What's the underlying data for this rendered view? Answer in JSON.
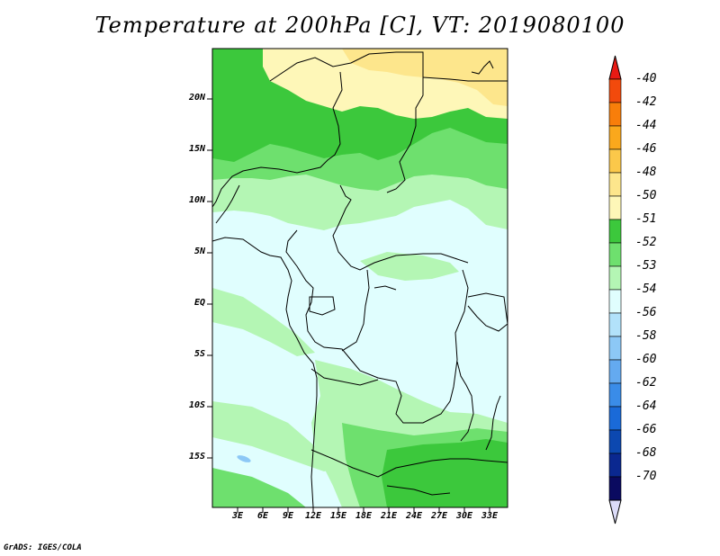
{
  "title": "Temperature at 200hPa [C], VT: 2019080100",
  "credit": "GrADS: IGES/COLA",
  "map": {
    "lat_labels": [
      "20N",
      "15N",
      "10N",
      "5N",
      "EQ",
      "5S",
      "10S",
      "15S"
    ],
    "lon_labels": [
      "3E",
      "6E",
      "9E",
      "12E",
      "15E",
      "18E",
      "21E",
      "24E",
      "27E",
      "30E",
      "33E"
    ],
    "lon_range": [
      1,
      34
    ],
    "lat_range": [
      -20,
      24.5
    ]
  },
  "colorbar": {
    "labels": [
      "-40",
      "-42",
      "-44",
      "-46",
      "-48",
      "-50",
      "-51",
      "-52",
      "-53",
      "-54",
      "-56",
      "-58",
      "-60",
      "-62",
      "-64",
      "-66",
      "-68",
      "-70"
    ],
    "colors": [
      "#e81a14",
      "#f24a0c",
      "#f87e0a",
      "#faa81c",
      "#fbc84a",
      "#fde68c",
      "#fef7b8",
      "#3cc83c",
      "#6ee06e",
      "#b4f6b4",
      "#e0fefe",
      "#b2e2fa",
      "#8cc8f6",
      "#64aaf0",
      "#3a8ce8",
      "#1a6ad8",
      "#0c48b0",
      "#0a2890",
      "#0a0a60",
      "#dcdcf8"
    ]
  }
}
